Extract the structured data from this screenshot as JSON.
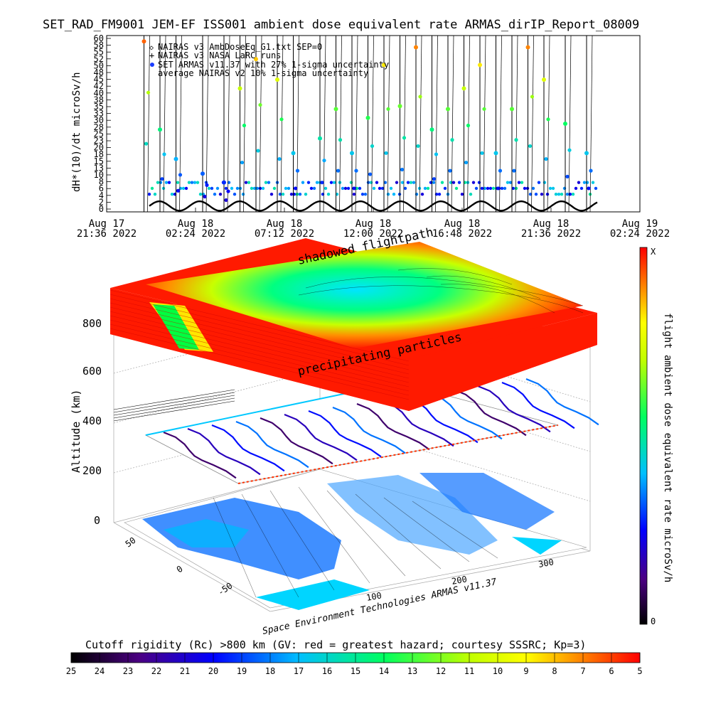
{
  "title": "SET_RAD_FM9001  JEM-EF ISS001 ambient dose equivalent rate ARMAS_dirIP_Report_08009",
  "chart_data": [
    {
      "type": "scatter",
      "ylabel": "dH*(10)/dt microSv/h",
      "ylim": [
        0,
        60
      ],
      "y_ticks": [
        "0",
        "2",
        "4",
        "6",
        "8",
        "10",
        "13",
        "15",
        "18",
        "20",
        "23",
        "25",
        "28",
        "30",
        "33",
        "35",
        "38",
        "40",
        "42",
        "45",
        "48",
        "50",
        "52",
        "55",
        "58",
        "60"
      ],
      "x_ticks": [
        {
          "line1": "Aug 17",
          "line2": "21:36 2022"
        },
        {
          "line1": "Aug 18",
          "line2": "02:24 2022"
        },
        {
          "line1": "Aug 18",
          "line2": "07:12 2022"
        },
        {
          "line1": "Aug 18",
          "line2": "12:00 2022"
        },
        {
          "line1": "Aug 18",
          "line2": "16:48 2022"
        },
        {
          "line1": "Aug 18",
          "line2": "21:36 2022"
        },
        {
          "line1": "Aug 19",
          "line2": "02:24 2022"
        }
      ],
      "legend": [
        {
          "symbol": "◇",
          "label": "NAIRAS v3 AmbDoseEq_G1.txt SEP=0"
        },
        {
          "symbol": "+",
          "label": "NAIRAS v3 NASA LaRC runs"
        },
        {
          "symbol": "●",
          "label": "SET ARMAS v11.37 with 27% 1-sigma uncertainty"
        },
        {
          "symbol": "",
          "label": "average NAIRAS v2 10% 1-sigma uncertainty"
        }
      ],
      "series": [
        {
          "name": "SET ARMAS v11.37 with 27% 1-sigma uncertainty",
          "points": [
            [
              0.07,
              58
            ],
            [
              0.1,
              28
            ],
            [
              0.13,
              18
            ],
            [
              0.18,
              13
            ],
            [
              0.22,
              10
            ],
            [
              0.25,
              42
            ],
            [
              0.28,
              52
            ],
            [
              0.32,
              45
            ],
            [
              0.35,
              20
            ],
            [
              0.4,
              25
            ],
            [
              0.43,
              35
            ],
            [
              0.46,
              20
            ],
            [
              0.49,
              32
            ],
            [
              0.52,
              50
            ],
            [
              0.55,
              36
            ],
            [
              0.58,
              56
            ],
            [
              0.61,
              28
            ],
            [
              0.64,
              35
            ],
            [
              0.67,
              42
            ],
            [
              0.7,
              50
            ],
            [
              0.73,
              20
            ],
            [
              0.76,
              35
            ],
            [
              0.79,
              56
            ],
            [
              0.82,
              45
            ],
            [
              0.86,
              30
            ],
            [
              0.9,
              20
            ]
          ]
        }
      ]
    },
    {
      "type": "heatmap",
      "title": "shadowed flightpath",
      "annotation": "precipitating particles",
      "zlabel": "Altitude (km)",
      "z_ticks": [
        "0",
        "200",
        "400",
        "600",
        "800"
      ],
      "lon_ticks": [
        "100",
        "200",
        "300"
      ],
      "lat_ticks": [
        "50",
        "0",
        "-50"
      ],
      "colorbar_label": "flight ambient dose equivalent rate microSv/h",
      "colorbar_ticks": [
        "X",
        "0"
      ],
      "credit": "Space Environment Technologies ARMAS v11.37"
    }
  ],
  "cutoff_bar": {
    "title": "Cutoff rigidity (Rc) >800 km (GV: red = greatest hazard; courtesy SSSRC; Kp=3)",
    "ticks": [
      "25",
      "24",
      "23",
      "22",
      "21",
      "20",
      "19",
      "18",
      "17",
      "16",
      "15",
      "14",
      "13",
      "12",
      "11",
      "10",
      "9",
      "8",
      "7",
      "6",
      "5"
    ]
  },
  "colors": {
    "hazard_red": "#ff1a00",
    "vertical_bar_start": "#000000",
    "vertical_bar_end": "#ff0000"
  }
}
